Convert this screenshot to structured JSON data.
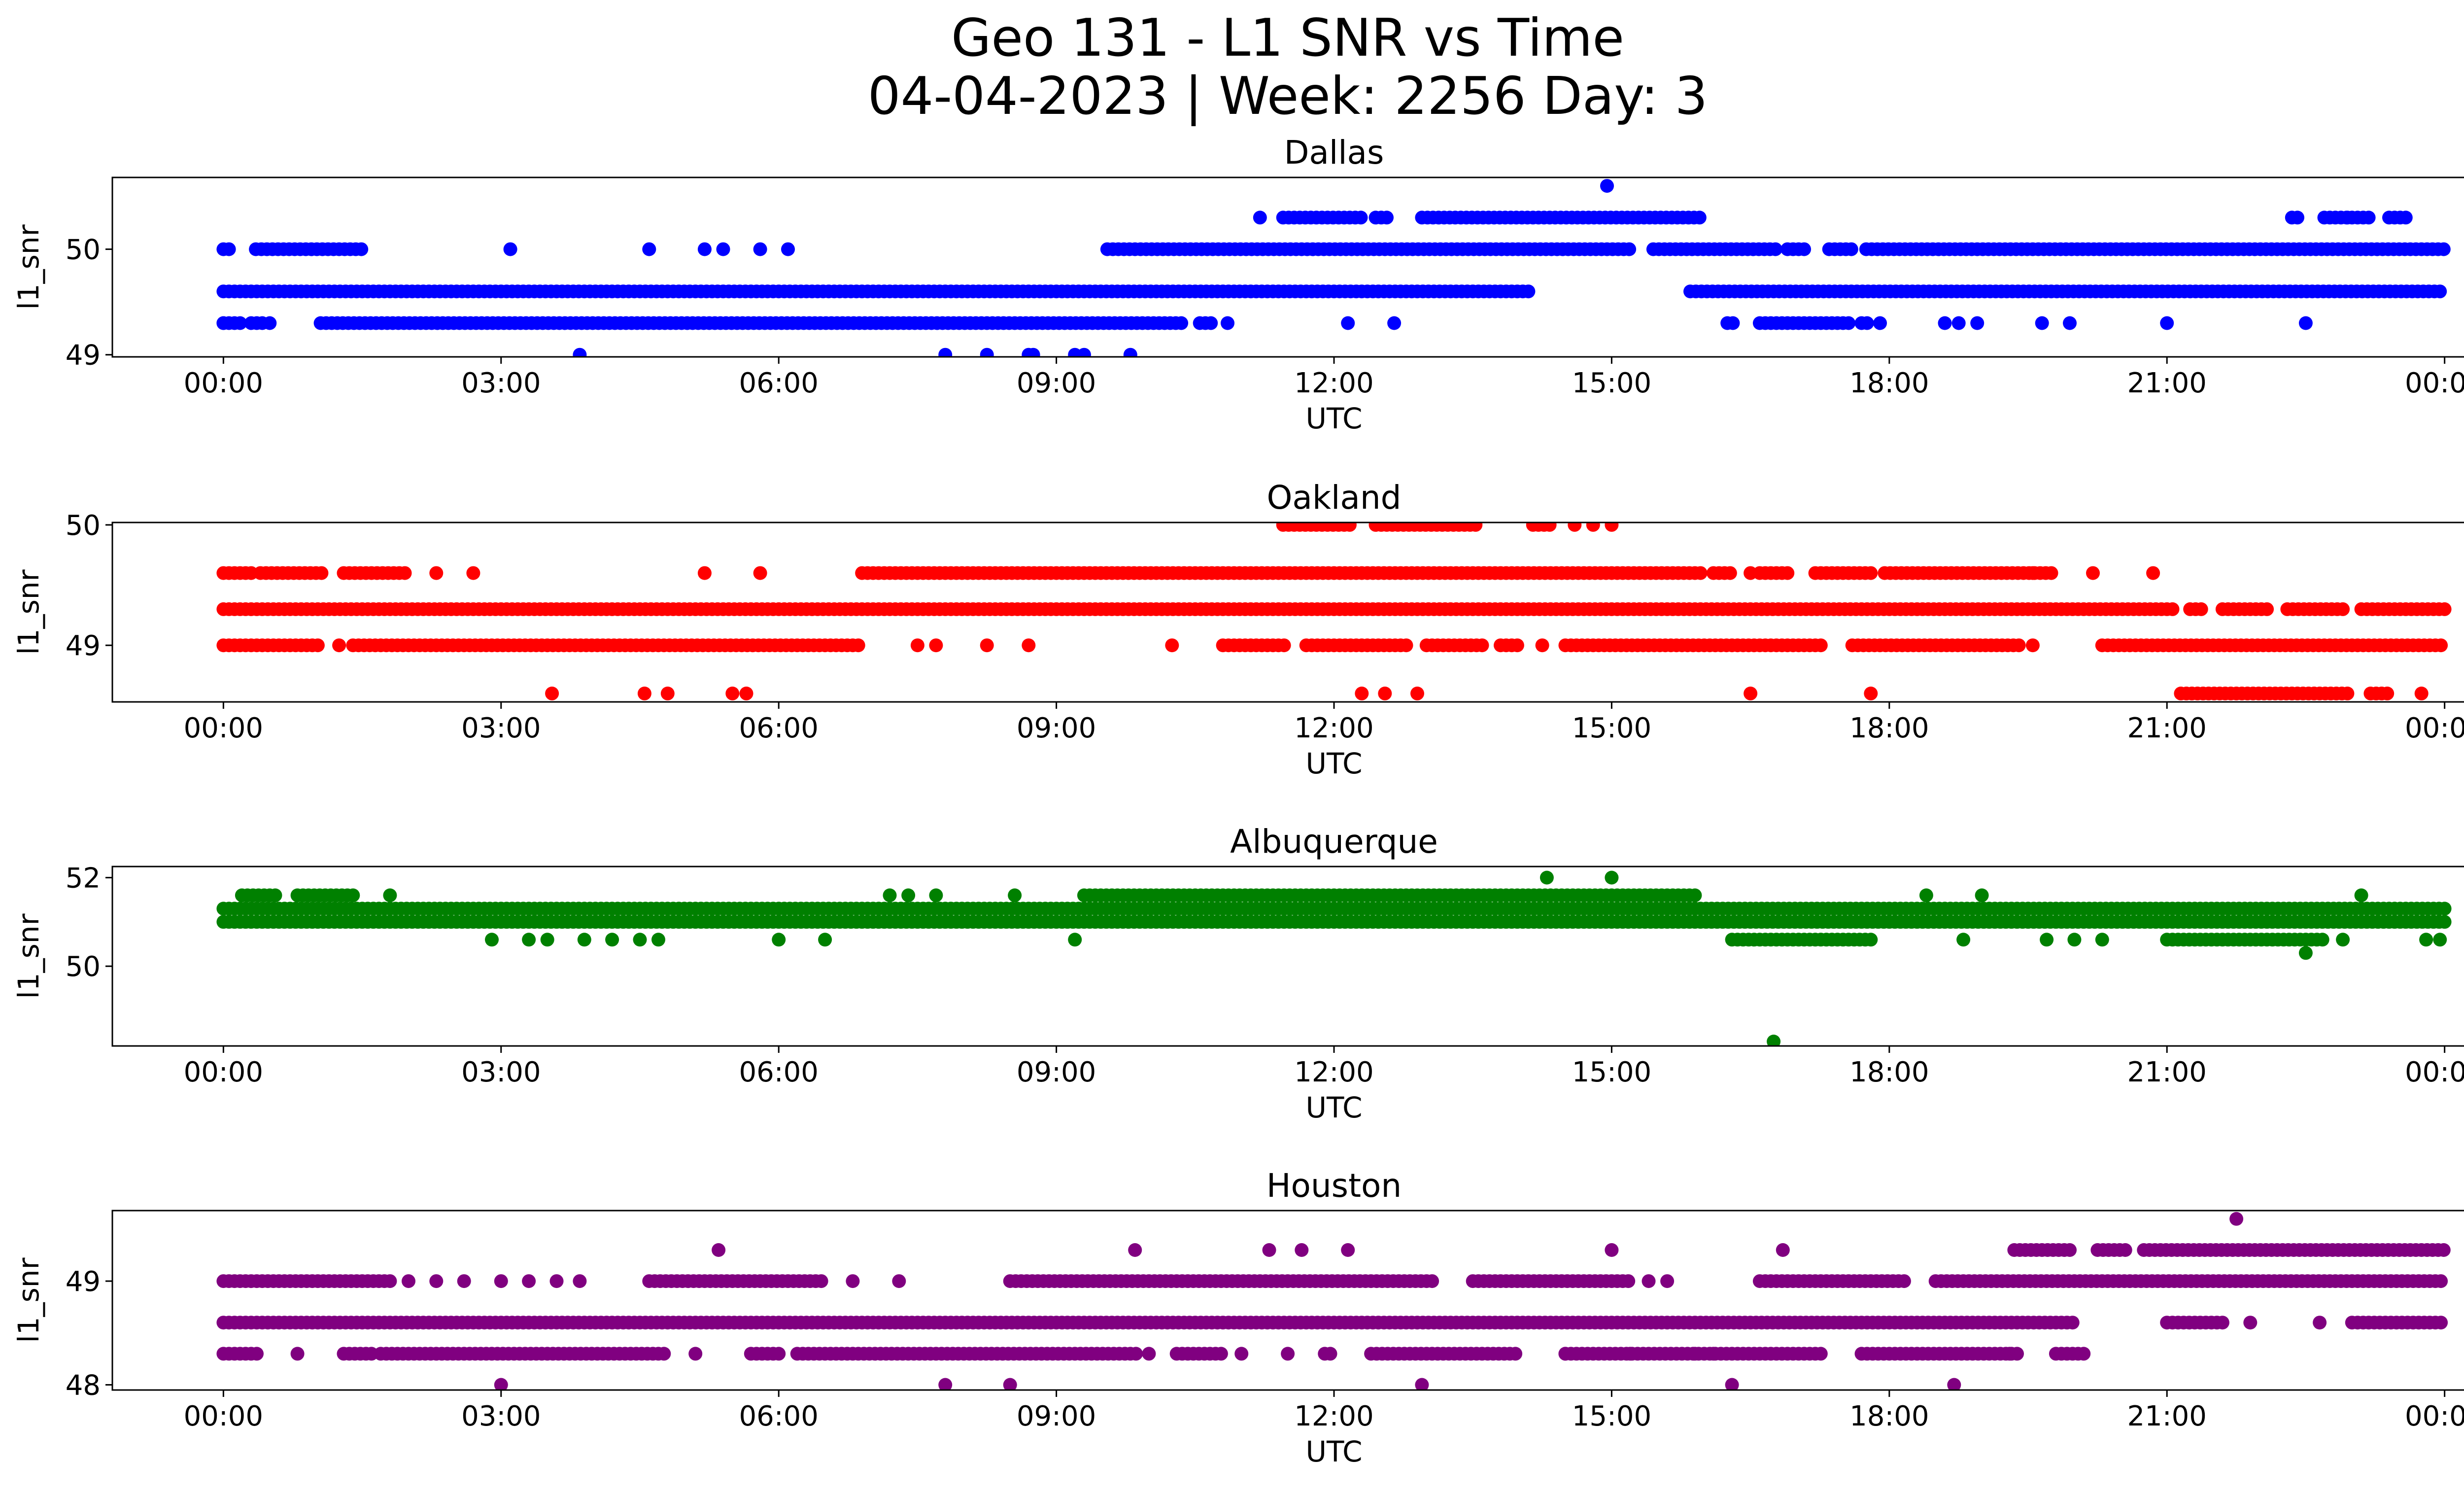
{
  "figure": {
    "title_line1": "Geo 131 - L1 SNR vs Time",
    "title_line2": "04-04-2023 | Week: 2256 Day: 3"
  },
  "chart_data": [
    {
      "type": "scatter",
      "title": "Dallas",
      "xlabel": "UTC",
      "ylabel": "l1_snr",
      "color": "#0000ff",
      "x_ticks": [
        "00:00",
        "03:00",
        "06:00",
        "09:00",
        "12:00",
        "15:00",
        "18:00",
        "21:00",
        "00:00"
      ],
      "xlim_hours": [
        -1.2,
        25.2
      ],
      "ylim": [
        48.98,
        50.68
      ],
      "y_ticks": [
        49,
        50
      ],
      "y_tick_labels": [
        "49",
        "50"
      ],
      "bands": [
        {
          "y": 49.6,
          "segments": [
            [
              0.0,
              14.15
            ],
            [
              15.85,
              24.0
            ]
          ]
        },
        {
          "y": 49.3,
          "segments": [
            [
              0.0,
              0.15
            ],
            [
              0.3,
              0.42
            ],
            [
              1.05,
              10.4
            ],
            [
              10.55,
              10.7
            ],
            [
              16.25,
              16.32
            ],
            [
              16.6,
              17.6
            ],
            [
              17.7,
              17.8
            ]
          ]
        },
        {
          "y": 50.0,
          "segments": [
            [
              0.0,
              0.1
            ],
            [
              0.35,
              1.5
            ],
            [
              9.55,
              15.2
            ],
            [
              15.45,
              16.8
            ],
            [
              16.9,
              17.1
            ],
            [
              17.35,
              17.6
            ],
            [
              17.75,
              24.0
            ]
          ]
        },
        {
          "y": 50.3,
          "segments": [
            [
              11.2,
              11.25
            ],
            [
              11.45,
              12.3
            ],
            [
              12.45,
              12.6
            ],
            [
              12.95,
              15.95
            ],
            [
              22.35,
              22.45
            ],
            [
              22.7,
              23.2
            ],
            [
              23.4,
              23.6
            ]
          ]
        }
      ],
      "points": [
        [
          3.85,
          49.0
        ],
        [
          7.8,
          49.0
        ],
        [
          8.25,
          49.0
        ],
        [
          8.7,
          49.0
        ],
        [
          8.75,
          49.0
        ],
        [
          9.2,
          49.0
        ],
        [
          9.3,
          49.0
        ],
        [
          9.8,
          49.0
        ],
        [
          14.95,
          50.6
        ],
        [
          3.1,
          50.0
        ],
        [
          4.6,
          50.0
        ],
        [
          5.2,
          50.0
        ],
        [
          5.4,
          50.0
        ],
        [
          5.8,
          50.0
        ],
        [
          6.1,
          50.0
        ],
        [
          10.85,
          49.3
        ],
        [
          12.15,
          49.3
        ],
        [
          12.65,
          49.3
        ],
        [
          18.6,
          49.3
        ],
        [
          18.95,
          49.3
        ],
        [
          19.65,
          49.3
        ],
        [
          19.95,
          49.3
        ],
        [
          21.0,
          49.3
        ],
        [
          22.5,
          49.3
        ],
        [
          0.0,
          49.3
        ],
        [
          0.18,
          49.3
        ],
        [
          0.5,
          49.3
        ],
        [
          17.9,
          49.3
        ],
        [
          18.75,
          49.3
        ],
        [
          22.95,
          50.3
        ]
      ]
    },
    {
      "type": "scatter",
      "title": "Oakland",
      "xlabel": "UTC",
      "ylabel": "l1_snr",
      "color": "#ff0000",
      "x_ticks": [
        "00:00",
        "03:00",
        "06:00",
        "09:00",
        "12:00",
        "15:00",
        "18:00",
        "21:00",
        "00:00"
      ],
      "xlim_hours": [
        -1.2,
        25.2
      ],
      "ylim": [
        48.53,
        50.02
      ],
      "y_ticks": [
        49,
        50
      ],
      "y_tick_labels": [
        "49",
        "50"
      ],
      "bands": [
        {
          "y": 49.3,
          "segments": [
            [
              0.0,
              21.1
            ],
            [
              21.25,
              21.4
            ],
            [
              21.6,
              22.1
            ],
            [
              22.3,
              22.9
            ],
            [
              23.1,
              24.0
            ]
          ]
        },
        {
          "y": 49.0,
          "segments": [
            [
              0.0,
              1.05
            ],
            [
              1.4,
              6.9
            ],
            [
              10.8,
              11.5
            ],
            [
              11.7,
              12.8
            ],
            [
              13.0,
              13.6
            ],
            [
              13.8,
              14.0
            ],
            [
              14.5,
              17.3
            ],
            [
              17.6,
              19.4
            ],
            [
              20.3,
              24.0
            ]
          ]
        },
        {
          "y": 49.6,
          "segments": [
            [
              0.0,
              0.3
            ],
            [
              0.4,
              1.1
            ],
            [
              1.3,
              2.0
            ],
            [
              6.9,
              16.0
            ],
            [
              16.1,
              16.3
            ],
            [
              16.6,
              16.9
            ],
            [
              17.2,
              17.8
            ],
            [
              17.95,
              19.8
            ]
          ]
        },
        {
          "y": 50.0,
          "segments": [
            [
              11.45,
              12.2
            ],
            [
              12.45,
              13.55
            ],
            [
              14.15,
              14.35
            ]
          ]
        },
        {
          "y": 48.6,
          "segments": [
            [
              21.15,
              22.95
            ],
            [
              23.2,
              23.4
            ]
          ]
        }
      ],
      "points": [
        [
          2.3,
          49.6
        ],
        [
          2.7,
          49.6
        ],
        [
          5.2,
          49.6
        ],
        [
          5.8,
          49.6
        ],
        [
          16.5,
          49.6
        ],
        [
          19.55,
          49.6
        ],
        [
          20.2,
          49.6
        ],
        [
          20.85,
          49.6
        ],
        [
          1.25,
          49.0
        ],
        [
          7.5,
          49.0
        ],
        [
          7.7,
          49.0
        ],
        [
          8.25,
          49.0
        ],
        [
          8.7,
          49.0
        ],
        [
          10.25,
          49.0
        ],
        [
          14.25,
          49.0
        ],
        [
          19.55,
          49.0
        ],
        [
          3.55,
          48.6
        ],
        [
          4.55,
          48.6
        ],
        [
          4.8,
          48.6
        ],
        [
          5.5,
          48.6
        ],
        [
          5.65,
          48.6
        ],
        [
          12.3,
          48.6
        ],
        [
          12.55,
          48.6
        ],
        [
          12.9,
          48.6
        ],
        [
          16.5,
          48.6
        ],
        [
          17.8,
          48.6
        ],
        [
          23.75,
          48.6
        ],
        [
          14.6,
          50.0
        ],
        [
          14.8,
          50.0
        ],
        [
          15.0,
          50.0
        ]
      ]
    },
    {
      "type": "scatter",
      "title": "Albuquerque",
      "xlabel": "UTC",
      "ylabel": "l1_snr",
      "color": "#008000",
      "x_ticks": [
        "00:00",
        "03:00",
        "06:00",
        "09:00",
        "12:00",
        "15:00",
        "18:00",
        "21:00",
        "00:00"
      ],
      "xlim_hours": [
        -1.2,
        25.2
      ],
      "ylim": [
        48.2,
        52.25
      ],
      "y_ticks": [
        50,
        52
      ],
      "y_tick_labels": [
        "50",
        "52"
      ],
      "bands": [
        {
          "y": 51.0,
          "segments": [
            [
              0.0,
              24.0
            ]
          ]
        },
        {
          "y": 51.3,
          "segments": [
            [
              0.0,
              24.0
            ]
          ]
        },
        {
          "y": 51.6,
          "segments": [
            [
              0.2,
              0.6
            ],
            [
              0.8,
              1.4
            ],
            [
              9.3,
              15.9
            ]
          ]
        },
        {
          "y": 50.6,
          "segments": [
            [
              16.3,
              17.8
            ],
            [
              21.0,
              22.7
            ]
          ]
        }
      ],
      "points": [
        [
          1.8,
          51.6
        ],
        [
          7.2,
          51.6
        ],
        [
          7.4,
          51.6
        ],
        [
          7.7,
          51.6
        ],
        [
          8.55,
          51.6
        ],
        [
          18.4,
          51.6
        ],
        [
          19.0,
          51.6
        ],
        [
          23.1,
          51.6
        ],
        [
          14.3,
          52.0
        ],
        [
          15.0,
          52.0
        ],
        [
          2.9,
          50.6
        ],
        [
          3.3,
          50.6
        ],
        [
          3.5,
          50.6
        ],
        [
          3.9,
          50.6
        ],
        [
          4.2,
          50.6
        ],
        [
          4.5,
          50.6
        ],
        [
          4.7,
          50.6
        ],
        [
          6.0,
          50.6
        ],
        [
          6.5,
          50.6
        ],
        [
          9.2,
          50.6
        ],
        [
          18.8,
          50.6
        ],
        [
          19.7,
          50.6
        ],
        [
          20.0,
          50.6
        ],
        [
          20.3,
          50.6
        ],
        [
          22.9,
          50.6
        ],
        [
          23.8,
          50.6
        ],
        [
          23.95,
          50.6
        ],
        [
          22.5,
          50.3
        ],
        [
          16.75,
          48.3
        ]
      ]
    },
    {
      "type": "scatter",
      "title": "Houston",
      "xlabel": "UTC",
      "ylabel": "l1_snr",
      "color": "#800080",
      "x_ticks": [
        "00:00",
        "03:00",
        "06:00",
        "09:00",
        "12:00",
        "15:00",
        "18:00",
        "21:00",
        "00:00"
      ],
      "xlim_hours": [
        -1.2,
        25.2
      ],
      "ylim": [
        47.95,
        49.68
      ],
      "y_ticks": [
        48,
        49
      ],
      "y_tick_labels": [
        "48",
        "49"
      ],
      "bands": [
        {
          "y": 48.6,
          "segments": [
            [
              0.0,
              20.0
            ],
            [
              21.0,
              21.6
            ],
            [
              23.0,
              24.0
            ]
          ]
        },
        {
          "y": 48.3,
          "segments": [
            [
              0.0,
              0.4
            ],
            [
              1.3,
              1.6
            ],
            [
              1.7,
              4.8
            ],
            [
              5.7,
              6.0
            ],
            [
              6.2,
              9.9
            ],
            [
              10.3,
              10.8
            ],
            [
              11.9,
              12.0
            ],
            [
              12.4,
              14.0
            ],
            [
              14.5,
              17.3
            ],
            [
              17.7,
              19.4
            ],
            [
              19.8,
              20.1
            ]
          ]
        },
        {
          "y": 49.0,
          "segments": [
            [
              0.0,
              1.8
            ],
            [
              4.6,
              6.5
            ],
            [
              8.5,
              13.1
            ],
            [
              13.5,
              15.2
            ],
            [
              16.6,
              18.2
            ],
            [
              18.5,
              24.0
            ]
          ]
        },
        {
          "y": 49.3,
          "segments": [
            [
              19.35,
              20.0
            ],
            [
              20.25,
              20.55
            ],
            [
              20.75,
              24.0
            ]
          ]
        }
      ],
      "points": [
        [
          2.0,
          49.0
        ],
        [
          2.3,
          49.0
        ],
        [
          2.6,
          49.0
        ],
        [
          3.0,
          49.0
        ],
        [
          3.3,
          49.0
        ],
        [
          3.6,
          49.0
        ],
        [
          3.85,
          49.0
        ],
        [
          6.8,
          49.0
        ],
        [
          7.3,
          49.0
        ],
        [
          15.4,
          49.0
        ],
        [
          15.6,
          49.0
        ],
        [
          0.8,
          48.3
        ],
        [
          5.1,
          48.3
        ],
        [
          10.0,
          48.3
        ],
        [
          11.0,
          48.3
        ],
        [
          11.5,
          48.3
        ],
        [
          14.5,
          48.3
        ],
        [
          15.2,
          48.3
        ],
        [
          15.9,
          48.3
        ],
        [
          16.1,
          48.3
        ],
        [
          19.3,
          48.3
        ],
        [
          5.35,
          49.3
        ],
        [
          9.85,
          49.3
        ],
        [
          11.3,
          49.3
        ],
        [
          11.65,
          49.3
        ],
        [
          12.15,
          49.3
        ],
        [
          15.0,
          49.3
        ],
        [
          16.85,
          49.3
        ],
        [
          21.75,
          49.6
        ],
        [
          21.9,
          48.6
        ],
        [
          22.65,
          48.6
        ],
        [
          3.0,
          48.0
        ],
        [
          7.8,
          48.0
        ],
        [
          8.5,
          48.0
        ],
        [
          12.95,
          48.0
        ],
        [
          16.3,
          48.0
        ],
        [
          18.7,
          48.0
        ]
      ]
    }
  ]
}
